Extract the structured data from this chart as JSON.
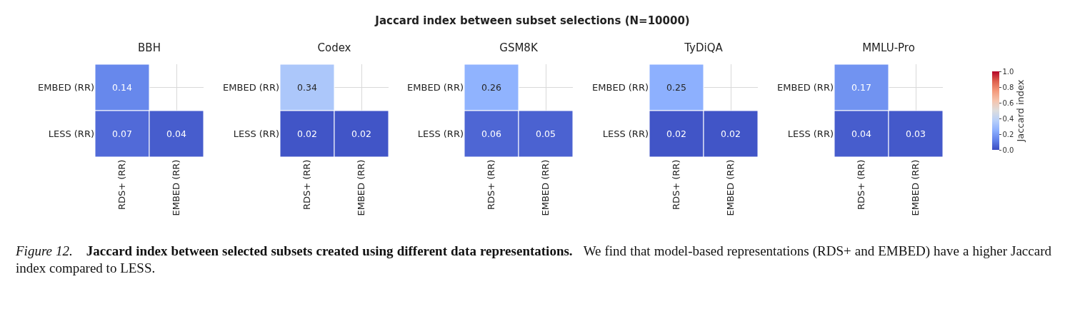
{
  "chart_data": [
    {
      "type": "other",
      "title": "Jaccard index between subset selections (N=10000)"
    },
    {
      "type": "heatmap",
      "title": "BBH",
      "categories": [
        "RDS+ (RR)",
        "EMBED (RR)"
      ],
      "y_categories": [
        "EMBED (RR)",
        "LESS (RR)"
      ],
      "cells": [
        [
          0.14,
          null
        ],
        [
          0.07,
          0.04
        ]
      ],
      "data_labels": true,
      "grid": true
    },
    {
      "type": "heatmap",
      "title": "Codex",
      "categories": [
        "RDS+ (RR)",
        "EMBED (RR)"
      ],
      "y_categories": [
        "EMBED (RR)",
        "LESS (RR)"
      ],
      "cells": [
        [
          0.34,
          null
        ],
        [
          0.02,
          0.02
        ]
      ],
      "data_labels": true,
      "grid": true
    },
    {
      "type": "heatmap",
      "title": "GSM8K",
      "categories": [
        "RDS+ (RR)",
        "EMBED (RR)"
      ],
      "y_categories": [
        "EMBED (RR)",
        "LESS (RR)"
      ],
      "cells": [
        [
          0.26,
          null
        ],
        [
          0.06,
          0.05
        ]
      ],
      "data_labels": true,
      "grid": true
    },
    {
      "type": "heatmap",
      "title": "TyDiQA",
      "categories": [
        "RDS+ (RR)",
        "EMBED (RR)"
      ],
      "y_categories": [
        "EMBED (RR)",
        "LESS (RR)"
      ],
      "cells": [
        [
          0.25,
          null
        ],
        [
          0.02,
          0.02
        ]
      ],
      "data_labels": true,
      "grid": true
    },
    {
      "type": "heatmap",
      "title": "MMLU-Pro",
      "categories": [
        "RDS+ (RR)",
        "EMBED (RR)"
      ],
      "y_categories": [
        "EMBED (RR)",
        "LESS (RR)"
      ],
      "cells": [
        [
          0.17,
          null
        ],
        [
          0.04,
          0.03
        ]
      ],
      "clim": [
        0,
        1
      ],
      "data_labels": true,
      "grid": true,
      "clabel": "Jaccard index",
      "cticks": [
        {
          "value": 0,
          "label": "0.0"
        },
        {
          "value": 0.2,
          "label": "0.2"
        },
        {
          "value": 0.4,
          "label": "0.4"
        },
        {
          "value": 0.6,
          "label": "0.6"
        },
        {
          "value": 0.8,
          "label": "0.8"
        },
        {
          "value": 1,
          "label": "1.0"
        }
      ]
    },
    {
      "type": "other",
      "annotations": [
        "Figure 12.",
        "Jaccard index between selected subsets created using different data representations.",
        "We find that model-based representations (RDS+ and EMBED) have a higher Jaccard index compared to LESS."
      ]
    }
  ]
}
